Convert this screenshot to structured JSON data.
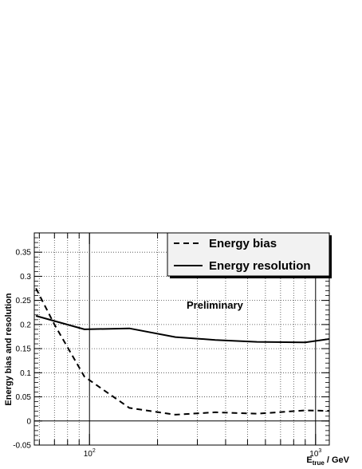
{
  "chart_data": {
    "type": "line",
    "xscale": "log",
    "xlim": [
      57,
      1150
    ],
    "ylim": [
      -0.05,
      0.39
    ],
    "grid": true,
    "xlabel": "E_true / GeV",
    "xlabel_parts": {
      "main": "E",
      "sub": "true",
      "rest": " / GeV"
    },
    "ylabel": "Energy bias and resolution",
    "x_tick_labels": [
      {
        "value": 100,
        "base": "10",
        "exp": "2"
      },
      {
        "value": 1000,
        "base": "10",
        "exp": "3"
      }
    ],
    "y_ticks": [
      -0.05,
      0,
      0.05,
      0.1,
      0.15,
      0.2,
      0.25,
      0.3,
      0.35
    ],
    "y_tick_labels": [
      "-0.05",
      "0",
      "0.05",
      "0.1",
      "0.15",
      "0.2",
      "0.25",
      "0.3",
      "0.35"
    ],
    "legend_position": "top-right",
    "annotation": "Preliminary",
    "series": [
      {
        "name": "Energy bias",
        "style": "dashed",
        "color": "#000000",
        "x": [
          58,
          70,
          95,
          150,
          240,
          360,
          550,
          900,
          1150
        ],
        "y": [
          0.275,
          0.2,
          0.092,
          0.027,
          0.013,
          0.018,
          0.015,
          0.022,
          0.021
        ]
      },
      {
        "name": "Energy resolution",
        "style": "solid",
        "color": "#000000",
        "x": [
          58,
          95,
          150,
          240,
          360,
          550,
          900,
          1150
        ],
        "y": [
          0.218,
          0.19,
          0.192,
          0.174,
          0.168,
          0.164,
          0.163,
          0.17
        ]
      }
    ]
  }
}
